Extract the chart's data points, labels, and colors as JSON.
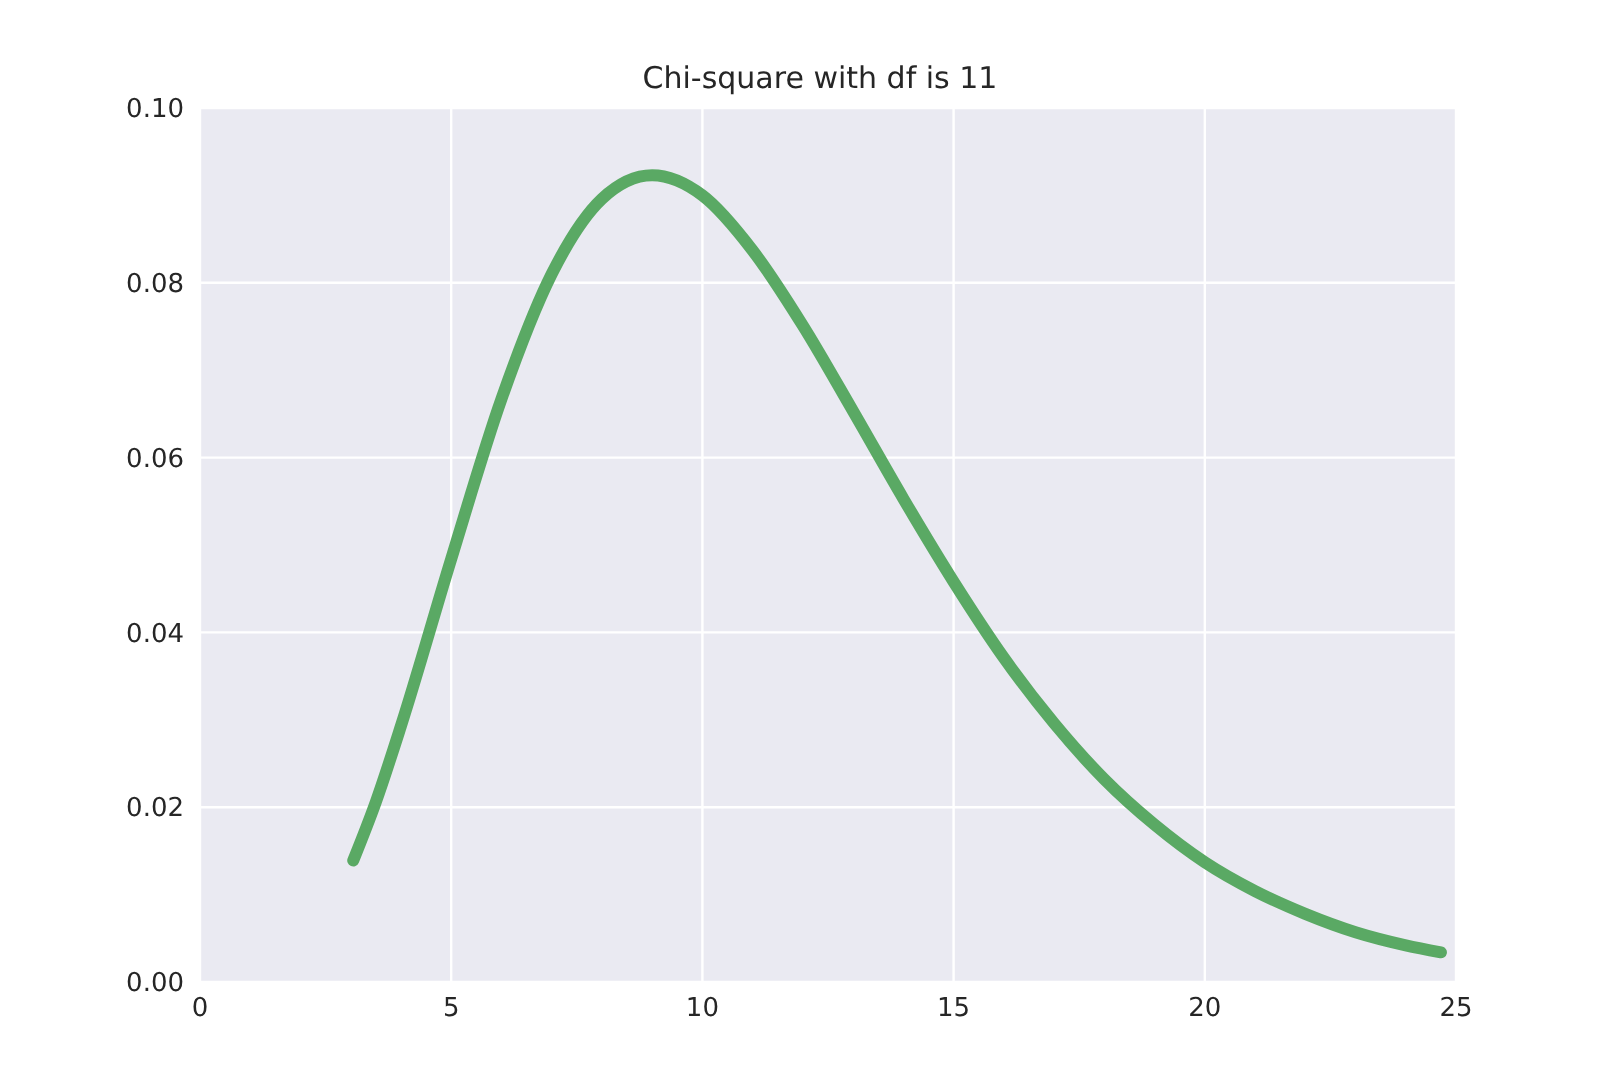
{
  "chart_data": {
    "type": "line",
    "title": "Chi-square with df is 11",
    "x": [
      3.05,
      3.5,
      4,
      5,
      6,
      7,
      8,
      9,
      10,
      11,
      12,
      13,
      14,
      15,
      16,
      17,
      18,
      19,
      20,
      21,
      22,
      23,
      24,
      24.7
    ],
    "series": [
      {
        "color": "#5aa964",
        "values": [
          0.0139,
          0.0206,
          0.0293,
          0.0484,
          0.0667,
          0.081,
          0.0896,
          0.0923,
          0.09,
          0.0837,
          0.0751,
          0.0653,
          0.0553,
          0.0458,
          0.0371,
          0.0296,
          0.0232,
          0.018,
          0.0137,
          0.0104,
          0.0078,
          0.0057,
          0.0042,
          0.0034
        ]
      }
    ],
    "xlim": [
      0,
      25
    ],
    "xticks": [
      0,
      5,
      10,
      15,
      20,
      25
    ],
    "ylim": [
      0,
      0.1
    ],
    "yticks": [
      {
        "value": 0,
        "label": "0.00"
      },
      0.02,
      0.04,
      0.06,
      0.08,
      {
        "value": 0.1,
        "label": "0.10"
      }
    ],
    "grid": true,
    "legend": false,
    "marker": "none",
    "line_style": "solid"
  }
}
